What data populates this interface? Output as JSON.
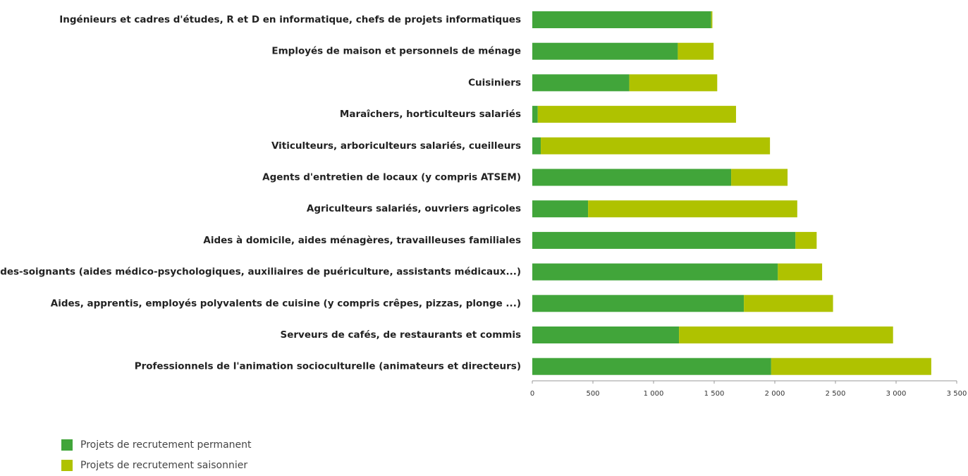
{
  "chart_data": {
    "type": "stacked_bar_horizontal",
    "categories": [
      "Ingénieurs et cadres d'études, R et D en informatique, chefs de projets informatiques",
      "Employés de maison et personnels de ménage",
      "Cuisiniers",
      "Maraîchers, horticulteurs salariés",
      "Viticulteurs, arboriculteurs salariés, cueilleurs",
      "Agents d'entretien de locaux (y compris ATSEM)",
      "Agriculteurs salariés, ouvriers agricoles",
      "Aides à domicile, aides ménagères, travailleuses familiales",
      "Aides-soignants (aides médico-psychologiques, auxiliaires de puériculture, assistants médicaux...)",
      "Aides, apprentis, employés polyvalents de cuisine (y compris crêpes, pizzas, plonge ...)",
      "Serveurs de cafés, de restaurants et commis",
      "Professionnels de l'animation socioculturelle (animateurs et directeurs)"
    ],
    "series": [
      {
        "name": "Projets de recrutement permanent",
        "color": "#41a53a",
        "values": [
          1475,
          1200,
          800,
          45,
          70,
          1640,
          460,
          2170,
          2025,
          1745,
          1210,
          1970
        ]
      },
      {
        "name": "Projets de recrutement saisonnier",
        "color": "#afc200",
        "values": [
          10,
          295,
          725,
          1635,
          1890,
          465,
          1725,
          175,
          365,
          735,
          1765,
          1320
        ]
      }
    ],
    "xlim": [
      0,
      3500
    ],
    "xticks": [
      0,
      500,
      {
        "value": 1000,
        "label": "1 000"
      },
      {
        "value": 1500,
        "label": "1 500"
      },
      {
        "value": 2000,
        "label": "2 000"
      },
      {
        "value": 2500,
        "label": "2 500"
      },
      {
        "value": 3000,
        "label": "3 000"
      },
      {
        "value": 3500,
        "label": "3 500"
      }
    ],
    "legend": "bottom-left"
  }
}
